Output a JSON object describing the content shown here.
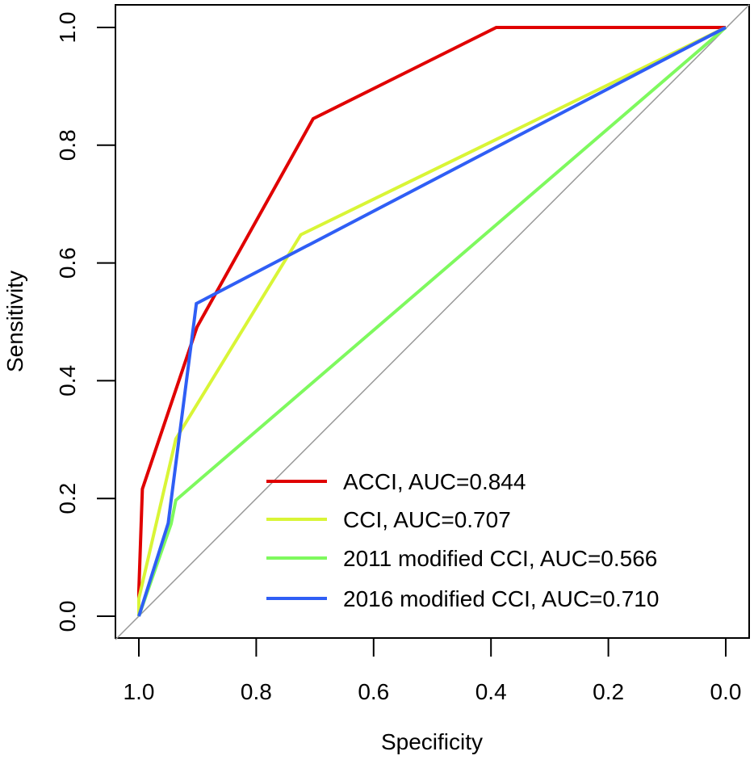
{
  "chart_data": {
    "type": "line",
    "title": "",
    "xlabel": "Specificity",
    "ylabel": "Sensitivity",
    "xlim": [
      1.0,
      0.0
    ],
    "ylim": [
      0.0,
      1.0
    ],
    "x_reversed": true,
    "grid": false,
    "xticks": [
      "1.0",
      "0.8",
      "0.6",
      "0.4",
      "0.2",
      "0.0"
    ],
    "yticks": [
      "0.0",
      "0.2",
      "0.4",
      "0.6",
      "0.8",
      "1.0"
    ],
    "reference_line": {
      "color": "#999999",
      "points": [
        [
          1,
          0
        ],
        [
          0,
          1
        ]
      ]
    },
    "legend_position": "bottom-right",
    "series": [
      {
        "name": "ACCI, AUC=0.844",
        "color": "#e00000",
        "points": [
          [
            1.0,
            0.0
          ],
          [
            1.0,
            0.044
          ],
          [
            0.994,
            0.216
          ],
          [
            0.901,
            0.491
          ],
          [
            0.703,
            0.845
          ],
          [
            0.391,
            1.0
          ],
          [
            0.0,
            1.0
          ]
        ]
      },
      {
        "name": "CCI, AUC=0.707",
        "color": "#d9f536",
        "points": [
          [
            1.0,
            0.0
          ],
          [
            1.0,
            0.03
          ],
          [
            0.937,
            0.301
          ],
          [
            0.724,
            0.648
          ],
          [
            0.0,
            1.0
          ]
        ]
      },
      {
        "name": "2011 modified CCI, AUC=0.566",
        "color": "#7ef95e",
        "points": [
          [
            1.0,
            0.0
          ],
          [
            0.945,
            0.157
          ],
          [
            0.937,
            0.197
          ],
          [
            0.0,
            1.0
          ]
        ]
      },
      {
        "name": "2016 modified CCI, AUC=0.710",
        "color": "#2f5ef5",
        "points": [
          [
            1.0,
            0.0
          ],
          [
            0.95,
            0.158
          ],
          [
            0.902,
            0.531
          ],
          [
            0.0,
            1.0
          ]
        ]
      }
    ]
  }
}
